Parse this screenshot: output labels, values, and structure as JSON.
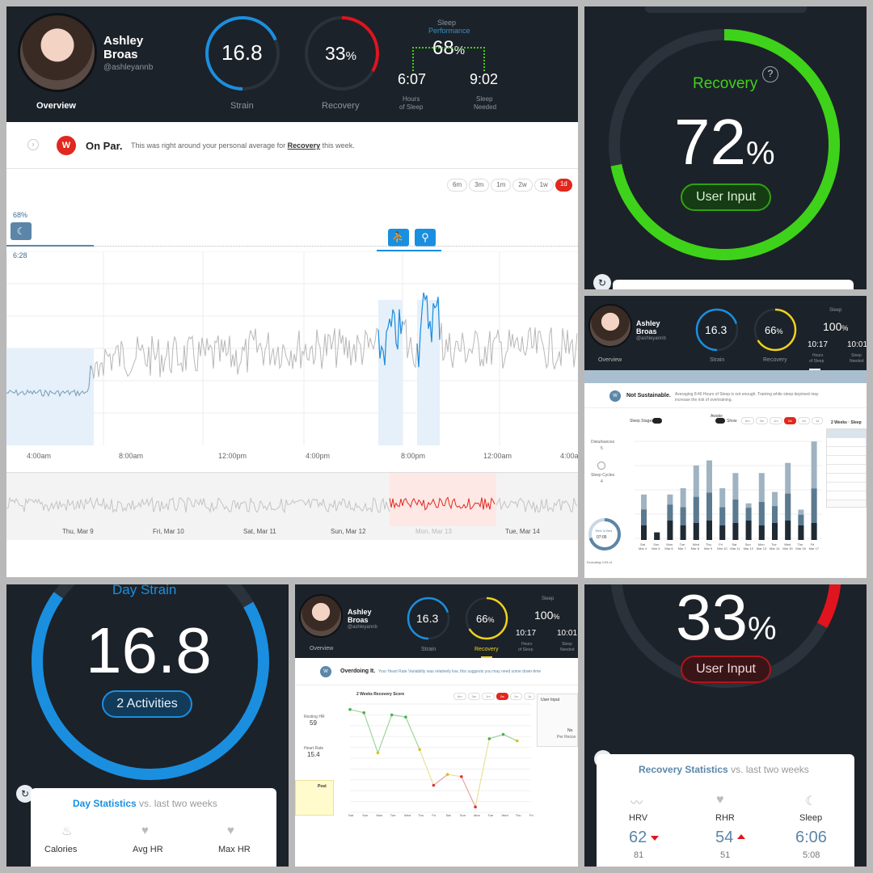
{
  "panel1": {
    "profile": {
      "name_line1": "Ashley",
      "name_line2": "Broas",
      "handle": "@ashleyannb"
    },
    "strain": {
      "value": "16.8",
      "label": "Strain"
    },
    "recovery": {
      "value": "33",
      "unit": "%",
      "label": "Recovery"
    },
    "sleep": {
      "title_line1": "Sleep",
      "title_line2": "Performance",
      "value": "68",
      "unit": "%",
      "hours_of_sleep": "6:07",
      "hours_of_sleep_label_line1": "Hours",
      "hours_of_sleep_label_line2": "of Sleep",
      "sleep_needed": "9:02",
      "sleep_needed_label_line1": "Sleep",
      "sleep_needed_label_line2": "Needed"
    },
    "tab_overview": "Overview",
    "banner": {
      "title": "On Par.",
      "text_before": "This was right around your personal average for",
      "text_link": "Recovery",
      "text_after": "this week."
    },
    "ranges": [
      "6m",
      "3m",
      "1m",
      "2w",
      "1w",
      "1d"
    ],
    "sleep_marker": {
      "pct": "68%",
      "time": "6:28"
    },
    "time_ticks": [
      "4:00am",
      "8:00am",
      "12:00pm",
      "4:00pm",
      "8:00pm",
      "12:00am",
      "4:00a"
    ],
    "days": [
      "Thu, Mar 9",
      "Fri, Mar 10",
      "Sat, Mar 11",
      "Sun, Mar 12",
      "Mon, Mar 13",
      "Tue, Mar 14"
    ]
  },
  "panel2": {
    "title": "Recovery",
    "help": "?",
    "value": "72",
    "unit": "%",
    "button": "User Input",
    "level": 0.72,
    "accent": "#3fd21a"
  },
  "panel3": {
    "profile": {
      "name_line1": "Ashley",
      "name_line2": "Broas",
      "handle": "@ashleyannb"
    },
    "tab_overview": "Overview",
    "strain": {
      "value": "16.3",
      "label": "Strain"
    },
    "recovery": {
      "value": "66",
      "unit": "%",
      "label": "Recovery"
    },
    "sleep": {
      "title": "Sleep",
      "value": "100",
      "unit": "%",
      "hours_of_sleep": "10:17",
      "hours_label_line1": "Hours",
      "hours_label_line2": "of Sleep",
      "sleep_needed": "10:01",
      "needed_label_line1": "Sleep",
      "needed_label_line2": "Needed"
    },
    "banner": {
      "title": "Not Sustainable.",
      "text_line1": "Averaging 8:40 Hours of Sleep is not enough. Training while sleep deprived may",
      "text_line2": "increase the risk of overtraining."
    },
    "legend": {
      "sleep_stages": "Sleep Stages",
      "awake": "Awake",
      "show": "Show"
    },
    "ranges": [
      "6m",
      "3m",
      "1m",
      "2w",
      "1w",
      "1d"
    ],
    "side_title": "2 Weeks · Sleep",
    "left_labels": {
      "disturbances": "Disturbances",
      "disturbances_val": "5",
      "sleep_cycles": "Sleep Cycles",
      "sleep_cycles_val": "4",
      "time_in_bed": "Time in Bed",
      "time_in_bed_val": "07:05",
      "excluding": "Excluding 0:03 of"
    },
    "bar_dates": [
      "Sat Mar 4",
      "Sun Mar 5",
      "Mon Mar 6",
      "Tue Mar 7",
      "Wed Mar 8",
      "Thu Mar 9",
      "Fri Mar 10",
      "Sat Mar 11",
      "Sun Mar 12",
      "Mon Mar 13",
      "Tue Mar 14",
      "Wed Mar 15",
      "Thu Mar 16",
      "Fri Mar 17"
    ]
  },
  "panel4": {
    "title": "Day Strain",
    "value": "16.8",
    "button": "2 Activities",
    "stats_title": "Day Statistics",
    "stats_suffix": "vs. last two weeks",
    "stats": [
      {
        "label": "Calories",
        "icon": "flame-icon"
      },
      {
        "label": "Avg HR",
        "icon": "heart-icon"
      },
      {
        "label": "Max HR",
        "icon": "heart-up-icon"
      }
    ]
  },
  "panel5": {
    "profile": {
      "name_line1": "Ashley",
      "name_line2": "Broas",
      "handle": "@ashleyannb"
    },
    "tab_overview": "Overview",
    "strain": {
      "value": "16.3",
      "label": "Strain"
    },
    "recovery": {
      "value": "66",
      "unit": "%",
      "label": "Recovery"
    },
    "sleep": {
      "title": "Sleep",
      "value": "100",
      "unit": "%",
      "hours_of_sleep": "10:17",
      "hours_label_line1": "Hours",
      "hours_label_line2": "of Sleep",
      "sleep_needed": "10:01",
      "needed_label_line1": "Sleep",
      "needed_label_line2": "Needed"
    },
    "banner": {
      "title": "Overdoing It.",
      "text": "Your Heart Rate Variability was relatively low, this suggests you may need some down-time"
    },
    "chart_title": "2 Weeks Recovery Score",
    "ranges": [
      "6m",
      "3m",
      "1m",
      "2w",
      "1w",
      "1d"
    ],
    "side_title": "User Input",
    "side_text_line1": "No",
    "side_text_line2": "Per Recov",
    "left": {
      "resting_hr": "Resting HR",
      "resting_hr_val": "59",
      "hrv": "Heart Rate",
      "hrv_val": "15.4"
    },
    "post": "Post",
    "x_labels": [
      "Sat",
      "Sun",
      "Mon",
      "Tue",
      "Wed",
      "Thu",
      "Fri",
      "Sat",
      "Sun",
      "Mon",
      "Tue",
      "Wed",
      "Thu",
      "Fri"
    ]
  },
  "panel6": {
    "value": "33",
    "unit": "%",
    "button": "User Input",
    "level": 0.33,
    "accent": "#e0141e",
    "stats_title": "Recovery Statistics",
    "stats_suffix": "vs. last two weeks",
    "stats": [
      {
        "label": "HRV",
        "icon": "pulse-icon",
        "value": "62",
        "trend": "down",
        "avg": "81"
      },
      {
        "label": "RHR",
        "icon": "heart-icon",
        "value": "54",
        "trend": "up",
        "avg": "51"
      },
      {
        "label": "Sleep",
        "icon": "moon-icon",
        "value": "6:06",
        "trend": "",
        "avg": "5:08"
      }
    ]
  },
  "chart_data": [
    {
      "type": "line",
      "title": "2 Weeks Recovery Score",
      "x": [
        "Sat Mar 4",
        "Sun Mar 5",
        "Mon Mar 6",
        "Tue Mar 7",
        "Wed Mar 8",
        "Thu Mar 9",
        "Fri Mar 10",
        "Sat Mar 11",
        "Sun Mar 12",
        "Mon Mar 13",
        "Tue Mar 14",
        "Wed Mar 15",
        "Thu Mar 16",
        "Fri Mar 17"
      ],
      "series": [
        {
          "values": [
            95,
            92,
            55,
            90,
            88,
            58,
            25,
            35,
            33,
            5,
            68,
            72,
            66,
            null
          ]
        }
      ],
      "ylim": [
        0,
        100
      ]
    },
    {
      "type": "bar",
      "title": "Sleep",
      "categories": [
        "Sat Mar 4",
        "Sun Mar 5",
        "Mon Mar 6",
        "Tue Mar 7",
        "Wed Mar 8",
        "Thu Mar 9",
        "Fri Mar 10",
        "Sat Mar 11",
        "Sun Mar 12",
        "Mon Mar 13",
        "Tue Mar 14",
        "Wed Mar 15",
        "Thu Mar 16",
        "Fri Mar 17"
      ],
      "series": [
        {
          "values": [
            3.6,
            0.6,
            3.6,
            4.1,
            5.9,
            6.3,
            4.1,
            5.3,
            2.9,
            5.3,
            3.8,
            6.1,
            2.4,
            7.8
          ]
        }
      ]
    }
  ]
}
